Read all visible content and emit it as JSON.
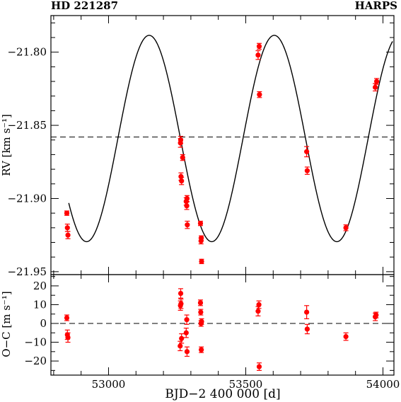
{
  "header": {
    "left": "HD 221287",
    "right": "HARPS"
  },
  "chart_data": [
    {
      "type": "scatter",
      "ylabel": "RV [km s⁻¹]",
      "xlim": [
        52790,
        54040
      ],
      "ylim": [
        -21.952,
        -21.775
      ],
      "yticks": [
        -21.8,
        -21.85,
        -21.9,
        -21.95
      ],
      "ytick_labels": [
        "−21.80",
        "−21.85",
        "−21.90",
        "−21.95"
      ],
      "hline": -21.858,
      "model_curve": {
        "shape": "sine",
        "center": -21.859,
        "amplitude": 0.0705,
        "period_days": 456,
        "maximum_at": 53148,
        "x_range": [
          52855,
          54035
        ]
      },
      "series": [
        {
          "color": "#ff0000",
          "points": [
            {
              "x": 52848,
              "y": -21.91,
              "err": 0.0015
            },
            {
              "x": 52850,
              "y": -21.92,
              "err": 0.0025
            },
            {
              "x": 52852,
              "y": -21.925,
              "err": 0.0025
            },
            {
              "x": 53262,
              "y": -21.862,
              "err": 0.003
            },
            {
              "x": 53263,
              "y": -21.86,
              "err": 0.0025
            },
            {
              "x": 53264,
              "y": -21.885,
              "err": 0.0025
            },
            {
              "x": 53266,
              "y": -21.888,
              "err": 0.0025
            },
            {
              "x": 53270,
              "y": -21.872,
              "err": 0.002
            },
            {
              "x": 53283,
              "y": -21.902,
              "err": 0.0025
            },
            {
              "x": 53285,
              "y": -21.905,
              "err": 0.0025
            },
            {
              "x": 53286,
              "y": -21.9,
              "err": 0.002
            },
            {
              "x": 53287,
              "y": -21.918,
              "err": 0.0025
            },
            {
              "x": 53335,
              "y": -21.917,
              "err": 0.0015
            },
            {
              "x": 53337,
              "y": -21.929,
              "err": 0.002
            },
            {
              "x": 53338,
              "y": -21.927,
              "err": 0.0015
            },
            {
              "x": 53339,
              "y": -21.943,
              "err": 0.0015
            },
            {
              "x": 53545,
              "y": -21.802,
              "err": 0.003
            },
            {
              "x": 53549,
              "y": -21.796,
              "err": 0.002
            },
            {
              "x": 53550,
              "y": -21.829,
              "err": 0.002
            },
            {
              "x": 53722,
              "y": -21.868,
              "err": 0.0035
            },
            {
              "x": 53724,
              "y": -21.881,
              "err": 0.0025
            },
            {
              "x": 53865,
              "y": -21.92,
              "err": 0.002
            },
            {
              "x": 53972,
              "y": -21.824,
              "err": 0.0025
            },
            {
              "x": 53977,
              "y": -21.82,
              "err": 0.002
            }
          ]
        }
      ]
    },
    {
      "type": "scatter",
      "xlabel": "BJD−2 400 000  [d]",
      "ylabel": "O−C  [m s⁻¹]",
      "xlim": [
        52790,
        54040
      ],
      "ylim": [
        -27.5,
        26
      ],
      "xticks": [
        53000,
        53500,
        54000
      ],
      "xtick_labels": [
        "53000",
        "53500",
        "54000"
      ],
      "yticks": [
        20,
        10,
        0,
        -10,
        -20
      ],
      "ytick_labels": [
        "20",
        "10",
        "0",
        "−10",
        "−20"
      ],
      "hline": 0,
      "series": [
        {
          "color": "#ff0000",
          "points": [
            {
              "x": 52848,
              "y": 3,
              "err": 1.5
            },
            {
              "x": 52850,
              "y": -6,
              "err": 2.5
            },
            {
              "x": 52852,
              "y": -7.5,
              "err": 2.5
            },
            {
              "x": 53261,
              "y": -12,
              "err": 2.5
            },
            {
              "x": 53262,
              "y": 9.5,
              "err": 2.5
            },
            {
              "x": 53263,
              "y": 16,
              "err": 2.5
            },
            {
              "x": 53264,
              "y": 10.5,
              "err": 2.5
            },
            {
              "x": 53266,
              "y": -8,
              "err": 2.5
            },
            {
              "x": 53283,
              "y": -5,
              "err": 2.5
            },
            {
              "x": 53285,
              "y": 2,
              "err": 2.5
            },
            {
              "x": 53286,
              "y": -15,
              "err": 2.5
            },
            {
              "x": 53335,
              "y": 11,
              "err": 1.5
            },
            {
              "x": 53336,
              "y": 6,
              "err": 1.5
            },
            {
              "x": 53337,
              "y": 0,
              "err": 1.5
            },
            {
              "x": 53338,
              "y": -14,
              "err": 1.5
            },
            {
              "x": 53339,
              "y": 1,
              "err": 1.5
            },
            {
              "x": 53545,
              "y": 6.5,
              "err": 2.5
            },
            {
              "x": 53548,
              "y": 10,
              "err": 2.0
            },
            {
              "x": 53549,
              "y": -23,
              "err": 2.0
            },
            {
              "x": 53722,
              "y": 6,
              "err": 3.5
            },
            {
              "x": 53724,
              "y": -3,
              "err": 2.5
            },
            {
              "x": 53865,
              "y": -7,
              "err": 2.0
            },
            {
              "x": 53972,
              "y": 3.5,
              "err": 2.0
            },
            {
              "x": 53975,
              "y": 4.5,
              "err": 1.5
            }
          ]
        }
      ]
    }
  ]
}
